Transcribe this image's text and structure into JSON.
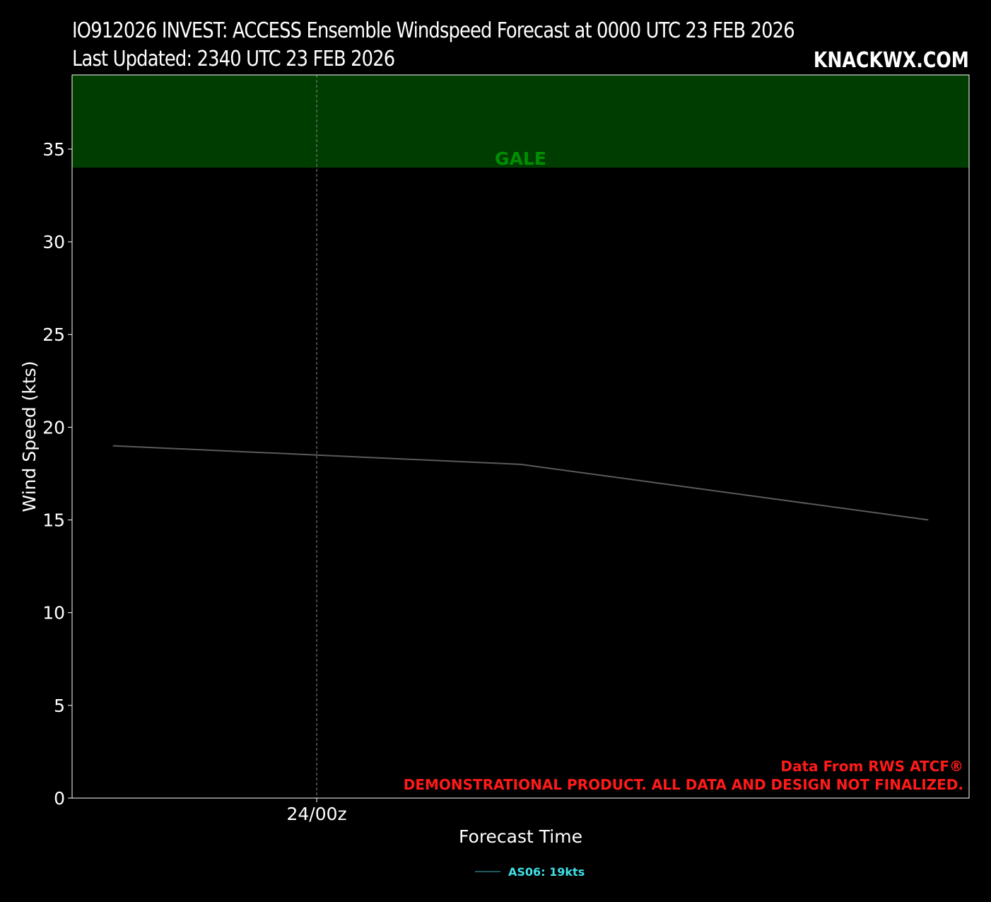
{
  "header": {
    "title_line1": "IO912026 INVEST: ACCESS Ensemble Windspeed Forecast at 0000 UTC 23 FEB 2026",
    "title_line2": "Last Updated: 2340 UTC 23 FEB 2026",
    "brand": "KNACKWX.COM"
  },
  "chart_data": {
    "type": "line",
    "xlabel": "Forecast Time",
    "ylabel": "Wind Speed (kts)",
    "ylim": [
      0,
      39
    ],
    "yticks": [
      0,
      5,
      10,
      15,
      20,
      25,
      30,
      35
    ],
    "xlim_hours": [
      -12,
      32
    ],
    "xticks": [
      {
        "hour": 0,
        "label": "24/00z"
      }
    ],
    "x_hours_from_24_00z": [
      -10,
      0,
      10,
      30
    ],
    "series": [
      {
        "name": "AS06",
        "values": [
          19,
          18.5,
          18,
          15
        ],
        "color": "#5a5a5a"
      }
    ],
    "threshold_bands": [
      {
        "label": "GALE",
        "from": 34,
        "to": 39,
        "color": "#003d00",
        "label_color": "#008f00"
      }
    ],
    "legend": {
      "entries": [
        {
          "label": "AS06: 19kts",
          "color": "#1f5a5c",
          "text_color": "#3fe0e6"
        }
      ],
      "placement": "bottom-center"
    },
    "credits": [
      "Data From RWS ATCF®",
      "DEMONSTRATIONAL PRODUCT. ALL DATA AND DESIGN NOT FINALIZED."
    ],
    "grid": false,
    "background": "#000000"
  }
}
